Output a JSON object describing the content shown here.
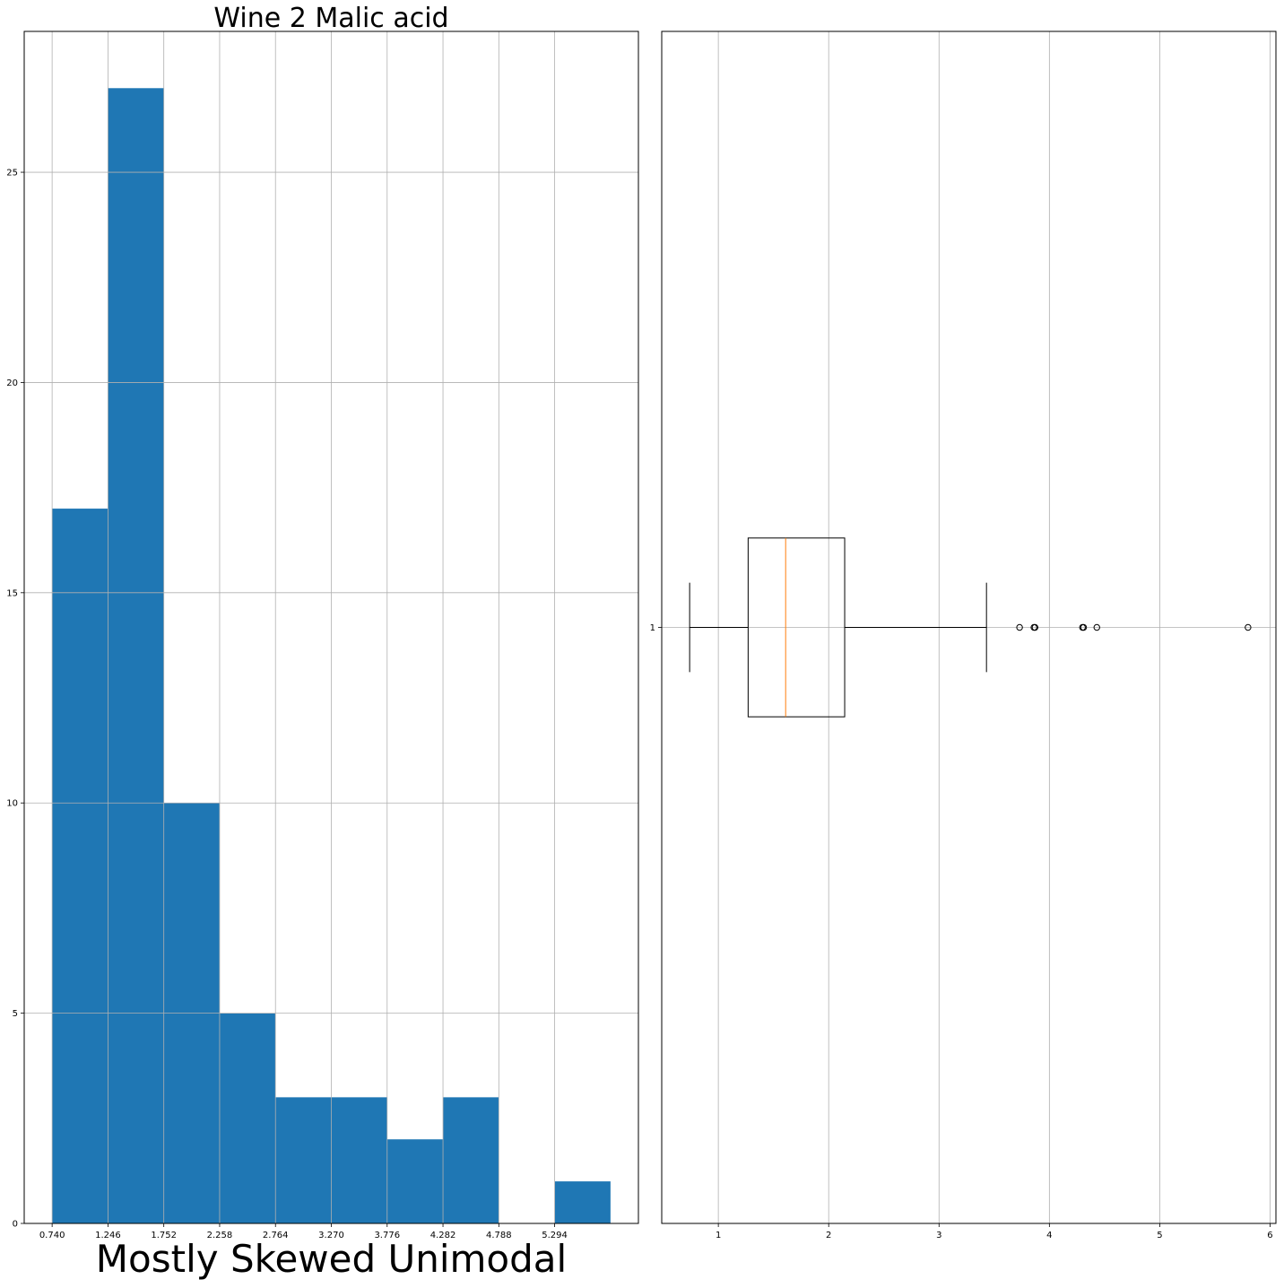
{
  "chart_data": [
    {
      "type": "bar",
      "title": "Wine 2 Malic acid",
      "xlabel": "Mostly Skewed Unimodal",
      "ylabel": "",
      "bin_edges": [
        0.74,
        1.246,
        1.752,
        2.258,
        2.764,
        3.27,
        3.776,
        4.282,
        4.788,
        5.294,
        5.8
      ],
      "values": [
        17,
        27,
        10,
        5,
        3,
        3,
        2,
        3,
        0,
        1
      ],
      "xticks": [
        0.74,
        1.246,
        1.752,
        2.258,
        2.764,
        3.27,
        3.776,
        4.282,
        4.788,
        5.294
      ],
      "xtick_labels": [
        "0.740",
        "1.246",
        "1.752",
        "2.258",
        "2.764",
        "3.270",
        "3.776",
        "4.282",
        "4.788",
        "5.294"
      ],
      "yticks": [
        0,
        5,
        10,
        15,
        20,
        25
      ],
      "xlim": [
        0.487,
        6.053
      ],
      "ylim": [
        0,
        28.35
      ],
      "grid": true,
      "colors": {
        "bar": "#1f77b4",
        "grid": "#b0b0b0",
        "axis": "#000000"
      }
    },
    {
      "type": "boxplot",
      "orientation": "horizontal",
      "category": "1",
      "whisker_low": 0.74,
      "q1": 1.27,
      "median": 1.61,
      "q3": 2.145,
      "whisker_high": 3.43,
      "outliers": [
        3.73,
        3.86,
        3.87,
        4.3,
        4.31,
        4.43,
        5.8
      ],
      "xticks": [
        1,
        2,
        3,
        4,
        5,
        6
      ],
      "xlim": [
        0.487,
        6.053
      ],
      "ylim": [
        0.5,
        1.5
      ],
      "grid": true,
      "colors": {
        "box": "#000000",
        "median": "#ff7f0e",
        "grid": "#b0b0b0"
      }
    }
  ]
}
